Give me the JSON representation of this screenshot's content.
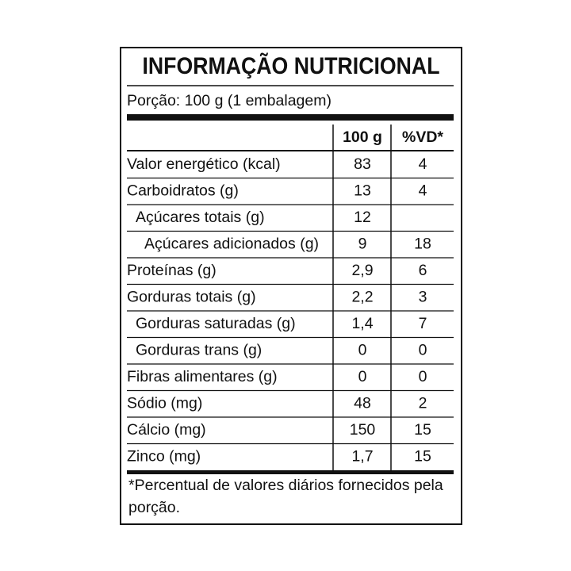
{
  "header": {
    "title": "INFORMAÇÃO NUTRICIONAL",
    "portion": "Porção: 100 g (1 embalagem)"
  },
  "table": {
    "columns": [
      "100 g",
      "%VD*"
    ],
    "rows": [
      {
        "label": "Valor energético (kcal)",
        "amount": 83,
        "vd": 4
      },
      {
        "label": "Carboidratos (g)",
        "amount": 13,
        "vd": 4,
        "children": [
          {
            "label": "Açúcares totais (g)",
            "amount": 12,
            "vd": null,
            "children": [
              {
                "label": "Açúcares adicionados (g)",
                "amount": 9,
                "vd": 18
              }
            ]
          }
        ]
      },
      {
        "label": "Proteínas (g)",
        "amount": "2,9",
        "vd": 6
      },
      {
        "label": "Gorduras totais (g)",
        "amount": "2,2",
        "vd": 3,
        "children": [
          {
            "label": "Gorduras saturadas (g)",
            "amount": "1,4",
            "vd": 7
          },
          {
            "label": "Gorduras trans (g)",
            "amount": 0,
            "vd": 0
          }
        ]
      },
      {
        "label": "Fibras alimentares (g)",
        "amount": 0,
        "vd": 0
      },
      {
        "label": "Sódio (mg)",
        "amount": 48,
        "vd": 2
      },
      {
        "label": "Cálcio (mg)",
        "amount": 150,
        "vd": 15
      },
      {
        "label": "Zinco (mg)",
        "amount": "1,7",
        "vd": 15
      }
    ]
  },
  "footnote": "*Percentual de valores diários fornecidos pela porção."
}
